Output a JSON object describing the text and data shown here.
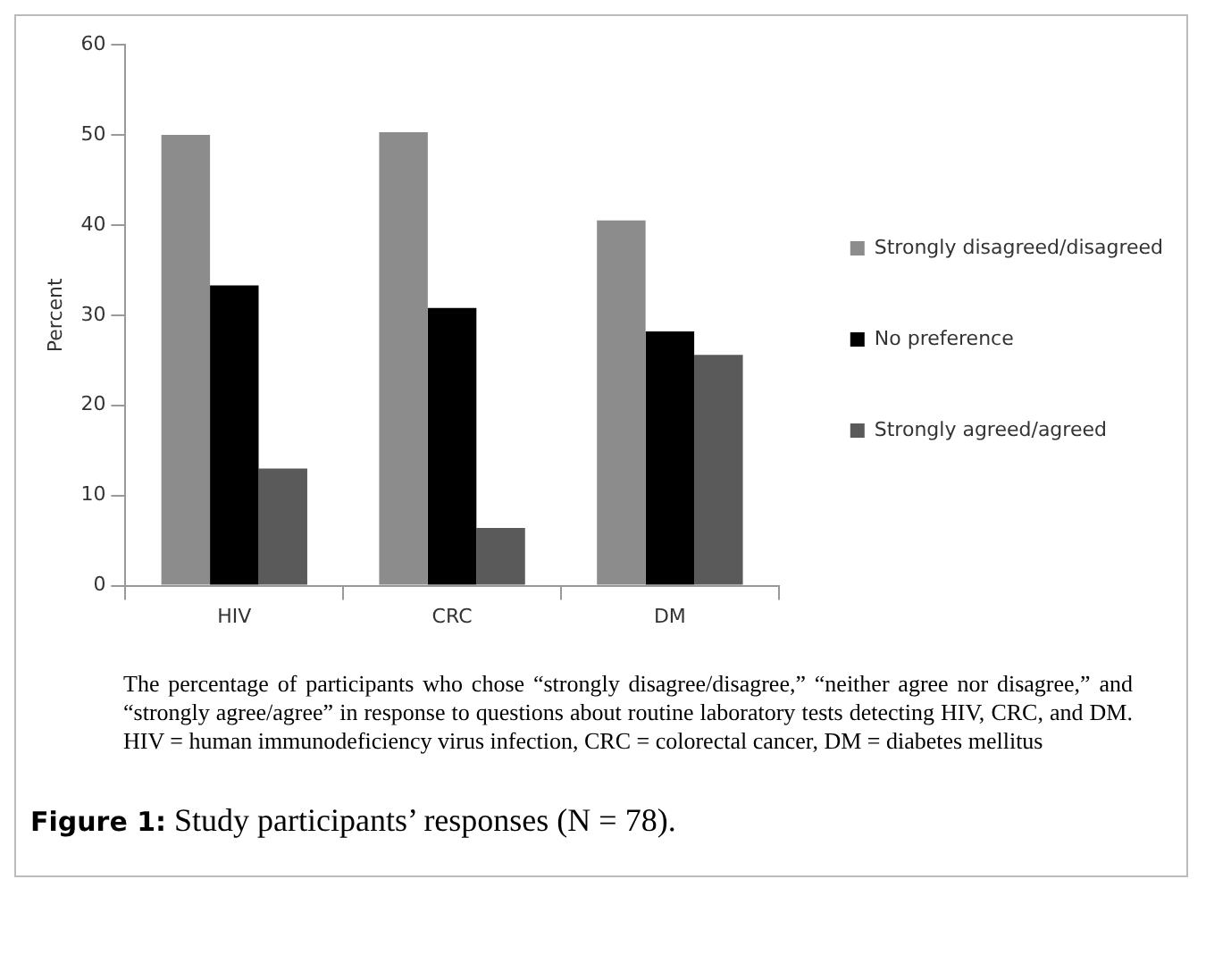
{
  "chart_data": {
    "type": "bar",
    "title": "Figure 1: Study participants’ responses (N = 78).",
    "ylabel": "Percent",
    "categories": [
      "HIV",
      "CRC",
      "DM"
    ],
    "series": [
      {
        "name": "Strongly disagreed/disagreed",
        "color": "#8c8c8c",
        "values": [
          50,
          50.3,
          40.5
        ]
      },
      {
        "name": "No preference",
        "color": "#000000",
        "values": [
          33.3,
          30.8,
          28.2
        ]
      },
      {
        "name": "Strongly agreed/agreed",
        "color": "#5a5a5a",
        "values": [
          13,
          6.4,
          25.6
        ]
      }
    ],
    "ylim": [
      0,
      60
    ],
    "yticks": [
      0,
      10,
      20,
      30,
      40,
      50,
      60
    ],
    "grid": false,
    "legend": "right",
    "annotations": [
      "The percentage of participants who chose “strongly disagree/disagree,” “neither agree nor disagree,” and “strongly agree/agree” in response to questions about routine laboratory tests detecting HIV, CRC, and DM. HIV = human immunodeficiency virus infection, CRC = colorectal cancer, DM = diabetes mellitus"
    ]
  }
}
